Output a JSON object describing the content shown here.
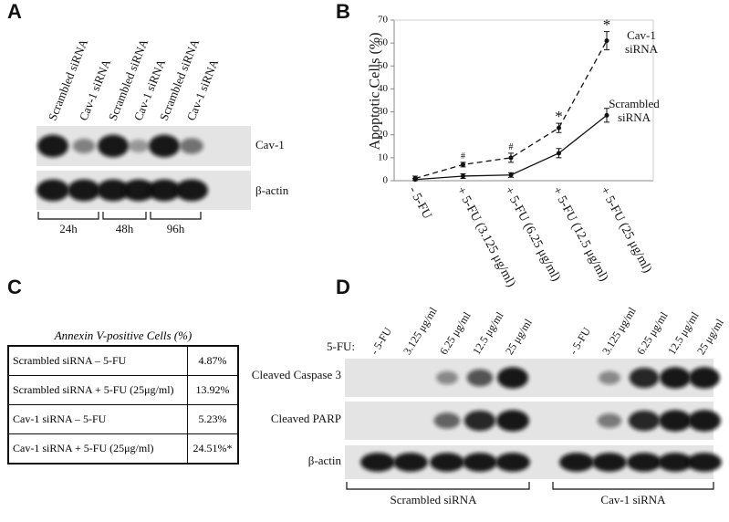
{
  "panel_labels": [
    "A",
    "B",
    "C",
    "D"
  ],
  "panel_a": {
    "lanes": [
      "Scrambled siRNA",
      "Cav-1 siRNA",
      "Scrambled siRNA",
      "Cav-1 siRNA",
      "Scrambled siRNA",
      "Cav-1 siRNA"
    ],
    "bands": [
      "Cav-1",
      "β-actin"
    ],
    "timepoints": [
      "24h",
      "48h",
      "96h"
    ]
  },
  "chart_data": {
    "type": "line",
    "ylabel": "Apoptotic Cells (%)",
    "categories": [
      "- 5-FU",
      "+ 5-FU (3.125 μg/ml)",
      "+ 5-FU (6.25 μg/ml)",
      "+ 5-FU (12.5 μg/ml)",
      "+ 5-FU (25 μg/ml)"
    ],
    "series": [
      {
        "name": "Cav-1 siRNA",
        "color": "#111111",
        "line_style": "dashed",
        "values": [
          1,
          7,
          10,
          23,
          61
        ],
        "errors": [
          1,
          1,
          2,
          2,
          4
        ],
        "significance": [
          null,
          "#",
          "#",
          "*",
          "*"
        ]
      },
      {
        "name": "Scrambled siRNA",
        "color": "#111111",
        "line_style": "solid",
        "values": [
          0.5,
          2,
          2.5,
          12,
          28.5
        ],
        "errors": [
          0.5,
          1,
          1,
          2,
          3
        ]
      }
    ],
    "ylim": [
      0,
      70
    ],
    "yticks": [
      0,
      10,
      20,
      30,
      40,
      50,
      60,
      70
    ],
    "grid": false
  },
  "panel_c": {
    "title": "Annexin V-positive Cells (%)",
    "rows": [
      [
        "Scrambled siRNA – 5-FU",
        "4.87%"
      ],
      [
        "Scrambled siRNA + 5-FU (25μg/ml)",
        "13.92%"
      ],
      [
        "Cav-1 siRNA – 5-FU",
        "5.23%"
      ],
      [
        "Cav-1 siRNA + 5-FU (25μg/ml)",
        "24.51%*"
      ]
    ]
  },
  "panel_d": {
    "treatment_label": "5-FU:",
    "lanes": [
      "- 5-FU",
      "3.125 μg/ml",
      "6.25 μg/ml",
      "12.5 μg/ml",
      "25 μg/ml",
      "- 5-FU",
      "3.125 μg/ml",
      "6.25 μg/ml",
      "12.5 μg/ml",
      "25 μg/ml"
    ],
    "bands": [
      "Cleaved Caspase 3",
      "Cleaved PARP",
      "β-actin"
    ],
    "groups": [
      "Scrambled siRNA",
      "Cav-1 siRNA"
    ]
  }
}
